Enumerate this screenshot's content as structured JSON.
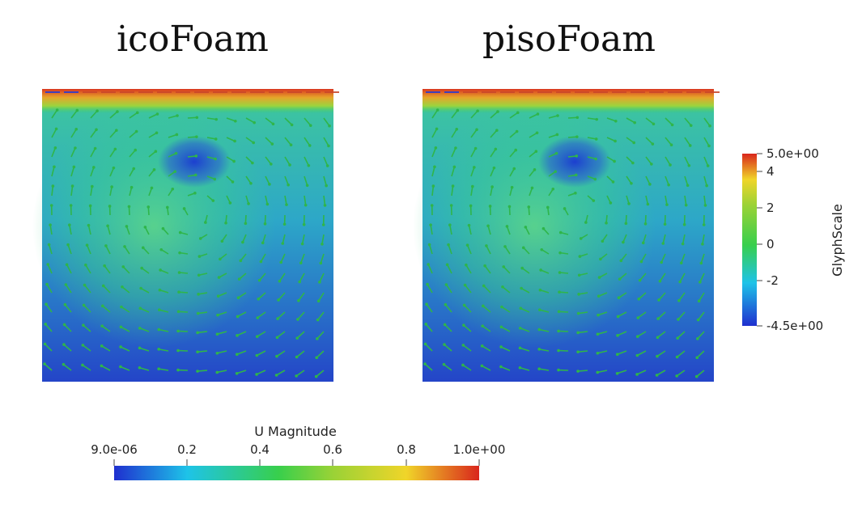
{
  "panels": [
    {
      "title": "icoFoam"
    },
    {
      "title": "pisoFoam"
    }
  ],
  "magnitude_colorbar": {
    "title": "U Magnitude",
    "ticks": [
      "9.0e-06",
      "0.2",
      "0.4",
      "0.6",
      "0.8",
      "1.0e+00"
    ],
    "range": [
      9e-06,
      1.0
    ]
  },
  "glyph_colorbar": {
    "title": "GlyphScale",
    "ticks": [
      "5.0e+00",
      "4",
      "2",
      "0",
      "-2",
      "-4.5e+00"
    ],
    "range": [
      -4.5,
      5.0
    ]
  },
  "colors": {
    "low": "#2233cc",
    "mid_low": "#19b3d6",
    "mid": "#3ccf5a",
    "mid_high": "#e6d431",
    "high": "#d9361f",
    "glyph": "#2fb54a"
  }
}
